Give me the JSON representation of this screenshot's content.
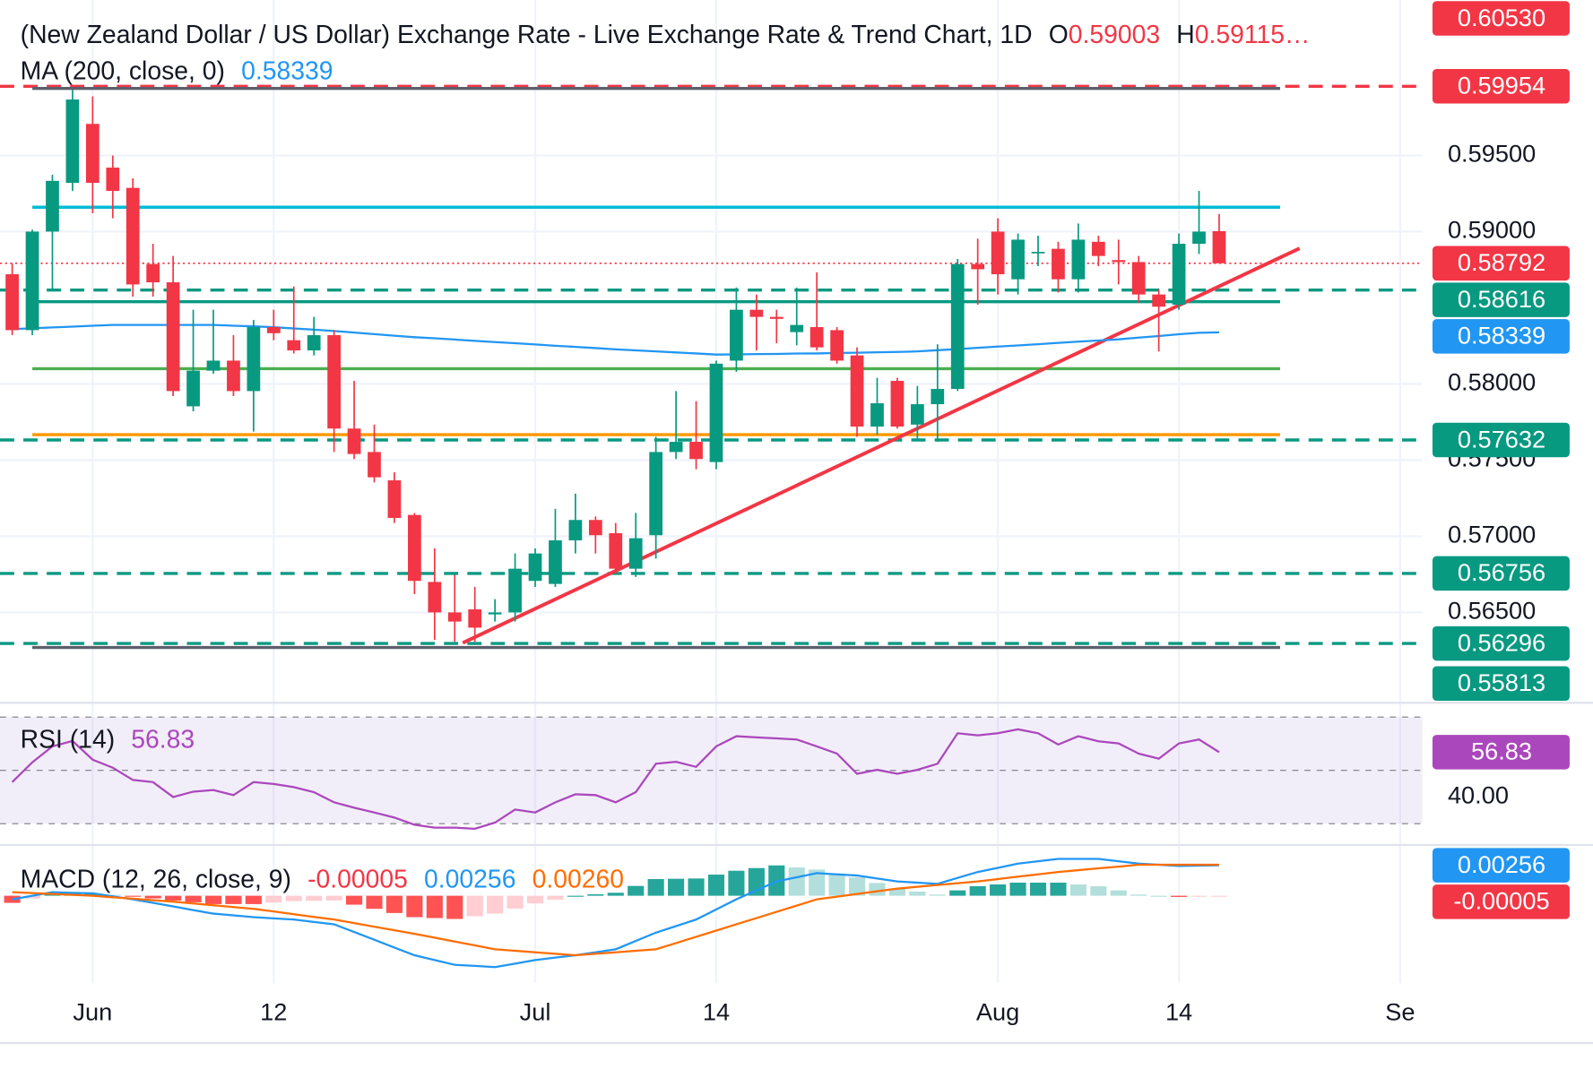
{
  "chart_data": [
    {
      "type": "candlestick",
      "title": "(New Zealand Dollar / US Dollar) Exchange Rate - Live Exchange Rate & Trend Chart, 1D",
      "ohlc": [
        {
          "key": "O",
          "value": "0.59003"
        },
        {
          "key": "H",
          "value": "0.59115…"
        }
      ],
      "categories": [
        null,
        null,
        null,
        null,
        "Jun",
        null,
        null,
        null,
        null,
        null,
        null,
        null,
        null,
        "12",
        null,
        null,
        null,
        null,
        null,
        null,
        null,
        null,
        null,
        null,
        null,
        null,
        "Jul",
        null,
        null,
        null,
        null,
        null,
        null,
        null,
        null,
        "14",
        null,
        null,
        null,
        null,
        null,
        null,
        null,
        null,
        null,
        null,
        null,
        null,
        null,
        "Aug",
        null,
        null,
        null,
        null,
        null,
        null,
        null,
        null,
        "14",
        null,
        null,
        null,
        null,
        null,
        null,
        null,
        null,
        null,
        null,
        "Se"
      ],
      "open": [
        0.5872,
        0.58353,
        0.59,
        0.5932,
        0.59707,
        0.5942,
        0.59287,
        0.58787,
        0.58667,
        0.57853,
        0.58087,
        0.58153,
        0.57953,
        0.58373,
        0.58287,
        0.5822,
        0.5832,
        0.57707,
        0.57553,
        0.57367,
        0.5714,
        0.567,
        0.565,
        0.5652,
        0.56487,
        0.565,
        0.56707,
        0.56687,
        0.56973,
        0.57107,
        0.5702,
        0.56787,
        0.57007,
        0.57553,
        0.5762,
        0.57487,
        0.58153,
        0.58487,
        0.5844,
        0.5834,
        0.58373,
        0.58353,
        0.58187,
        0.5772,
        0.5802,
        0.57733,
        0.57867,
        0.57967,
        0.58787,
        0.59,
        0.58687,
        0.5886,
        0.58887,
        0.58687,
        0.58933,
        0.58813,
        0.588,
        0.58587,
        0.5852,
        0.5892,
        0.59003,
        null,
        null,
        null,
        null,
        null,
        null,
        null,
        null,
        null
      ],
      "high": [
        0.5879,
        0.59013,
        0.59373,
        0.59933,
        0.59887,
        0.595,
        0.5935,
        0.5892,
        0.5884,
        0.58487,
        0.58487,
        0.5832,
        0.5842,
        0.58487,
        0.5864,
        0.5844,
        0.58353,
        0.5802,
        0.57733,
        0.5742,
        0.57153,
        0.5692,
        0.56747,
        0.56667,
        0.56587,
        0.56887,
        0.5692,
        0.5718,
        0.5728,
        0.5713,
        0.57087,
        0.57153,
        0.57653,
        0.57953,
        0.57887,
        0.58153,
        0.58633,
        0.58587,
        0.58487,
        0.58633,
        0.58733,
        0.58373,
        0.5824,
        0.5804,
        0.5804,
        0.57987,
        0.5826,
        0.5882,
        0.58953,
        0.59087,
        0.58987,
        0.58973,
        0.58933,
        0.59053,
        0.58973,
        0.58947,
        0.5884,
        0.5862,
        0.58987,
        0.59267,
        0.59115,
        null,
        null,
        null,
        null,
        null,
        null,
        null,
        null,
        null
      ],
      "low": [
        0.5832,
        0.5832,
        0.5862,
        0.59267,
        0.5912,
        0.59087,
        0.58573,
        0.58573,
        0.5792,
        0.5782,
        0.58067,
        0.5792,
        0.57687,
        0.58287,
        0.582,
        0.58187,
        0.57553,
        0.57507,
        0.57353,
        0.57087,
        0.5662,
        0.5632,
        0.56307,
        0.56307,
        0.5644,
        0.5644,
        0.56667,
        0.56667,
        0.56887,
        0.56887,
        0.56753,
        0.56733,
        0.56853,
        0.57507,
        0.5744,
        0.5744,
        0.5808,
        0.5822,
        0.58267,
        0.58253,
        0.5822,
        0.58133,
        0.57653,
        0.57667,
        0.57707,
        0.57633,
        0.5762,
        0.57953,
        0.5852,
        0.58587,
        0.58587,
        0.58773,
        0.586,
        0.586,
        0.58773,
        0.58653,
        0.58533,
        0.58213,
        0.58487,
        0.58853,
        0.58792,
        null,
        null,
        null,
        null,
        null,
        null,
        null,
        null,
        null
      ],
      "close": [
        0.58353,
        0.59,
        0.59333,
        0.59867,
        0.5932,
        0.59267,
        0.58653,
        0.58667,
        0.57953,
        0.58087,
        0.58153,
        0.57953,
        0.58373,
        0.58333,
        0.5822,
        0.5832,
        0.57707,
        0.5754,
        0.57387,
        0.5712,
        0.56707,
        0.565,
        0.5644,
        0.564,
        0.565,
        0.56787,
        0.56887,
        0.56973,
        0.57107,
        0.57007,
        0.56787,
        0.56987,
        0.57553,
        0.5762,
        0.57507,
        0.58133,
        0.58487,
        0.5844,
        0.58427,
        0.58387,
        0.5824,
        0.58153,
        0.5772,
        0.57873,
        0.5772,
        0.57867,
        0.57967,
        0.58787,
        0.58753,
        0.5872,
        0.58947,
        0.58867,
        0.58687,
        0.58947,
        0.5884,
        0.588,
        0.58587,
        0.58507,
        0.5892,
        0.59,
        0.58792,
        null,
        null,
        null,
        null,
        null,
        null,
        null,
        null,
        null
      ],
      "colors": {
        "up": "#089981",
        "down": "#f23645"
      },
      "ylim": [
        0.5592,
        0.6052
      ],
      "yticks": [
        {
          "value": 0.565,
          "label": "0.56500"
        },
        {
          "value": 0.57,
          "label": "0.57000"
        },
        {
          "value": 0.575,
          "label": "0.57500"
        },
        {
          "value": 0.58,
          "label": "0.58000"
        },
        {
          "value": 0.59,
          "label": "0.59000"
        },
        {
          "value": 0.595,
          "label": "0.59500"
        }
      ],
      "grid": true,
      "ma": {
        "title": "MA (200, close, 0)",
        "legend": "0.58339",
        "color": "#2196f3",
        "values": [
          0.5836,
          0.58365,
          0.58371,
          0.58376,
          0.58382,
          0.58387,
          0.58387,
          0.58387,
          0.58387,
          0.58387,
          0.58387,
          0.58382,
          0.58378,
          0.58373,
          0.58364,
          0.58356,
          0.58347,
          0.58337,
          0.58327,
          0.58317,
          0.58307,
          0.58299,
          0.58291,
          0.58283,
          0.58275,
          0.58267,
          0.58259,
          0.58251,
          0.58243,
          0.58235,
          0.58227,
          0.5822,
          0.58213,
          0.58207,
          0.582,
          0.58193,
          0.58194,
          0.58196,
          0.58197,
          0.58199,
          0.582,
          0.58203,
          0.58205,
          0.58208,
          0.5821,
          0.58213,
          0.58221,
          0.58229,
          0.58237,
          0.58245,
          0.58253,
          0.58261,
          0.58269,
          0.58277,
          0.58285,
          0.58293,
          0.58304,
          0.58315,
          0.58326,
          0.58336,
          0.58339,
          null,
          null,
          null,
          null,
          null,
          null,
          null,
          null,
          null
        ]
      },
      "levels": [
        {
          "value": 0.6053,
          "label": "0.60530",
          "color": "#f23645",
          "style": "dashed"
        },
        {
          "value": 0.59954,
          "label": "0.59954",
          "color": "#f23645",
          "style": "dashed"
        },
        {
          "value": 0.5994,
          "color": "#5d606b",
          "style": "solid"
        },
        {
          "value": 0.5916,
          "color": "#00bcd4",
          "style": "solid"
        },
        {
          "value": 0.58792,
          "label": "0.58792",
          "color": "#f23645",
          "style": "dotted"
        },
        {
          "value": 0.58616,
          "label": "0.58616",
          "color": "#089981",
          "style": "dashed"
        },
        {
          "value": 0.5854,
          "color": "#089981",
          "style": "solid"
        },
        {
          "value": 0.58339,
          "label": "0.58339",
          "color": "#2196f3",
          "style": "none"
        },
        {
          "value": 0.581,
          "color": "#4caf50",
          "style": "solid"
        },
        {
          "value": 0.57667,
          "color": "#ff9800",
          "style": "solid"
        },
        {
          "value": 0.57632,
          "label": "0.57632",
          "color": "#089981",
          "style": "dashed"
        },
        {
          "value": 0.56756,
          "label": "0.56756",
          "color": "#089981",
          "style": "dashed"
        },
        {
          "value": 0.56296,
          "label": "0.56296",
          "color": "#089981",
          "style": "dashed"
        },
        {
          "value": 0.5627,
          "color": "#5d606b",
          "style": "solid"
        },
        {
          "value": 0.55813,
          "label": "0.55813",
          "color": "#089981",
          "style": "none"
        }
      ],
      "trendline": {
        "values": [
          0.563,
          0.5889
        ],
        "color": "#f23645"
      }
    },
    {
      "type": "line",
      "title": "RSI (14)",
      "legend": "56.83",
      "color": "#ab47bc",
      "values": [
        45.6,
        53,
        59,
        61,
        54,
        51,
        46.4,
        45.6,
        40,
        42,
        42.6,
        40.7,
        45.6,
        44.9,
        43.7,
        41.8,
        38,
        36,
        34.2,
        32.3,
        29.6,
        28.5,
        28.5,
        28.1,
        30.4,
        35.3,
        34.2,
        38,
        41,
        40.7,
        38,
        41.8,
        52.5,
        53.2,
        51.3,
        59,
        62.8,
        62.4,
        62,
        61.6,
        59,
        56.3,
        48.7,
        50.2,
        48.7,
        50.2,
        52.5,
        63.9,
        63.1,
        63.9,
        65.4,
        63.9,
        59.7,
        62.8,
        60.9,
        60.1,
        56.3,
        54.4,
        60.1,
        61.6,
        56.83,
        null,
        null,
        null,
        null,
        null,
        null,
        null,
        null,
        null
      ],
      "ylim": [
        22,
        74.2
      ],
      "yticks": [
        {
          "value": 40,
          "label": "40.00"
        }
      ],
      "levels": [
        70,
        50,
        30
      ],
      "price_labels": [
        {
          "value": 56.83,
          "label": "56.83",
          "color": "#ab47bc"
        }
      ]
    },
    {
      "type": "macd",
      "title": "MACD (12, 26, close, 9)",
      "legend": [
        "-0.00005",
        "0.00256",
        "0.00260"
      ],
      "series": [
        {
          "color": "#2196f3",
          "values": [
            -0.0003,
            0,
            0.0003,
            0.00025,
            0.0002,
            -5e-05,
            -0.0003,
            -0.0006,
            -0.0009,
            -0.0012,
            -0.0015,
            -0.00165,
            -0.0018,
            -0.0019,
            -0.002,
            -0.0022,
            -0.0024,
            -0.00305,
            -0.0037,
            -0.00435,
            -0.005,
            -0.0054,
            -0.0058,
            -0.0059,
            -0.006,
            -0.0057,
            -0.0054,
            -0.0052,
            -0.005,
            -0.00475,
            -0.0045,
            -0.0038,
            -0.0031,
            -0.00255,
            -0.002,
            -0.00115,
            -0.0003,
            0.00045,
            0.0012,
            0.00155,
            0.0019,
            0.0018,
            0.0017,
            0.00145,
            0.0012,
            0.0011,
            0.001,
            0.0015,
            0.002,
            0.00235,
            0.0027,
            0.0029,
            0.0031,
            0.0031,
            0.0031,
            0.0029,
            0.0027,
            0.0026,
            0.0025,
            0.00253,
            0.00256,
            null,
            null,
            null,
            null,
            null,
            null,
            null,
            null,
            null
          ]
        },
        {
          "color": "#ff6d00",
          "values": [
            0.0003,
            0.000225,
            0.00015,
            7.5e-05,
            0,
            -0.000125,
            -0.00025,
            -0.000375,
            -0.0005,
            -0.00065,
            -0.0008,
            -0.00095,
            -0.0011,
            -0.001325,
            -0.00155,
            -0.001775,
            -0.002,
            -0.0023,
            -0.0026,
            -0.0029,
            -0.0032,
            -0.003525,
            -0.00385,
            -0.004175,
            -0.0045,
            -0.004625,
            -0.00475,
            -0.004875,
            -0.005,
            -0.004875,
            -0.00475,
            -0.004625,
            -0.0045,
            -0.003975,
            -0.00345,
            -0.002925,
            -0.0024,
            -0.001875,
            -0.00135,
            -0.000825,
            -0.0003,
            -7.5e-05,
            0.00015,
            0.000375,
            0.0006,
            0.00075,
            0.0009,
            0.00105,
            0.0012,
            0.0014,
            0.0016,
            0.0018,
            0.002,
            0.00215,
            0.0023,
            0.00245,
            0.0026,
            0.0026,
            0.0026,
            0.0026,
            0.0026,
            null,
            null,
            null,
            null,
            null,
            null,
            null,
            null,
            null
          ]
        }
      ],
      "histogram": {
        "colors": {
          "grow_above": "#26a69a",
          "fall_above": "#b2dfdb",
          "grow_below": "#ff5252",
          "fall_below": "#ffcdd2"
        },
        "values": [
          -0.0006,
          -0.000225,
          0.00015,
          0.000175,
          0.0002,
          7.5e-05,
          -5e-05,
          -0.000225,
          -0.0004,
          -0.00055,
          -0.0007,
          -0.0007,
          -0.0007,
          -0.000575,
          -0.00045,
          -0.000425,
          -0.0004,
          -0.00075,
          -0.0011,
          -0.00145,
          -0.0018,
          -0.001875,
          -0.00195,
          -0.001725,
          -0.0015,
          -0.001075,
          -0.00065,
          -0.000325,
          0,
          0.000125,
          0.00025,
          0.000825,
          0.0014,
          0.001425,
          0.00145,
          0.001775,
          0.0021,
          0.002325,
          0.00255,
          0.002375,
          0.0022,
          0.001875,
          0.00155,
          0.001075,
          0.0006,
          0.00035,
          0.0001,
          0.00045,
          0.0008,
          0.00095,
          0.0011,
          0.0011,
          0.0011,
          0.00095,
          0.0008,
          0.00045,
          0.0001,
          0,
          -0.0001,
          -7e-05,
          -5e-05,
          null,
          null,
          null,
          null,
          null,
          null,
          null,
          null,
          null
        ]
      },
      "ylim": [
        -0.00734,
        0.00401
      ],
      "price_labels": [
        {
          "value": 0.00256,
          "label": "0.00256",
          "color": "#2196f3"
        },
        {
          "value": -5e-05,
          "label": "-0.00005",
          "color": "#f23645"
        }
      ]
    }
  ]
}
